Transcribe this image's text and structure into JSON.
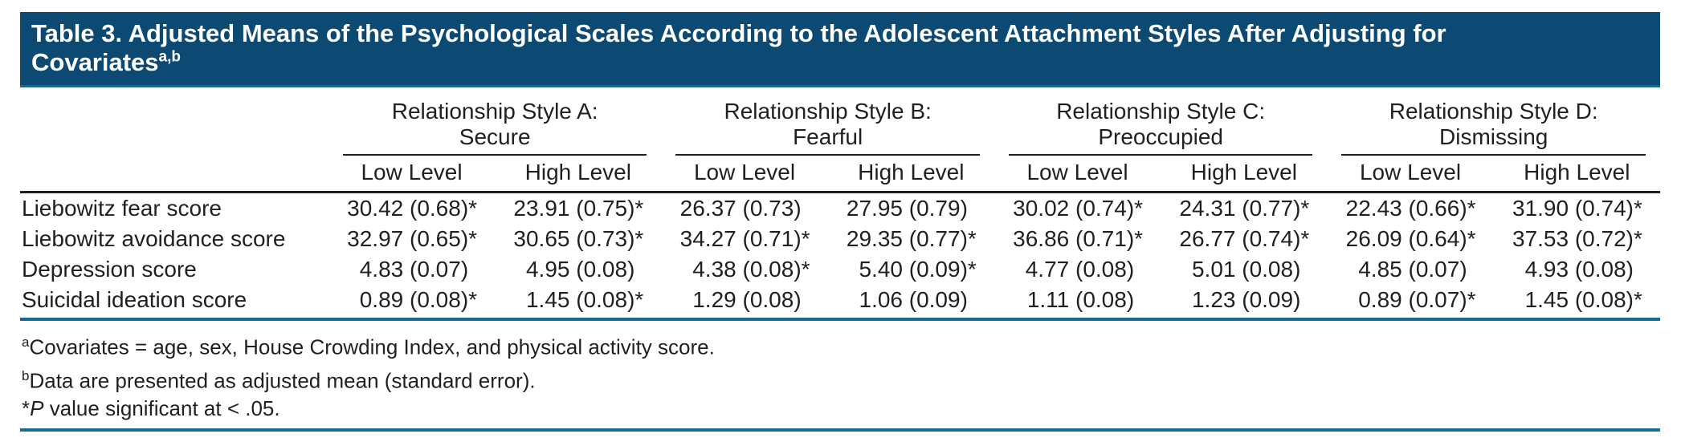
{
  "colors": {
    "title_bg": "#0d4a73",
    "rule_teal": "#186a8e",
    "rule_black": "#231f20",
    "text": "#231f20",
    "title_text": "#ffffff"
  },
  "title": {
    "line1": "Table 3. Adjusted Means of the Psychological Scales According to the Adolescent Attachment Styles After Adjusting for",
    "line2": "Covariates",
    "superscript": "a,b"
  },
  "table": {
    "groups": [
      {
        "line1": "Relationship Style A:",
        "line2": "Secure"
      },
      {
        "line1": "Relationship Style B:",
        "line2": "Fearful"
      },
      {
        "line1": "Relationship Style C:",
        "line2": "Preoccupied"
      },
      {
        "line1": "Relationship Style D:",
        "line2": "Dismissing"
      }
    ],
    "subheader": {
      "low": "Low Level",
      "high": "High Level"
    },
    "rows": [
      {
        "label": "Liebowitz fear score",
        "cells": [
          {
            "v": "30.42 (0.68)",
            "s": "*"
          },
          {
            "v": "23.91 (0.75)",
            "s": "*"
          },
          {
            "v": "26.37 (0.73)",
            "s": ""
          },
          {
            "v": "27.95 (0.79)",
            "s": ""
          },
          {
            "v": "30.02 (0.74)",
            "s": "*"
          },
          {
            "v": "24.31 (0.77)",
            "s": "*"
          },
          {
            "v": "22.43 (0.66)",
            "s": "*"
          },
          {
            "v": "31.90 (0.74)",
            "s": "*"
          }
        ]
      },
      {
        "label": "Liebowitz avoidance score",
        "cells": [
          {
            "v": "32.97 (0.65)",
            "s": "*"
          },
          {
            "v": "30.65 (0.73)",
            "s": "*"
          },
          {
            "v": "34.27 (0.71)",
            "s": "*"
          },
          {
            "v": "29.35 (0.77)",
            "s": "*"
          },
          {
            "v": "36.86 (0.71)",
            "s": "*"
          },
          {
            "v": "26.77 (0.74)",
            "s": "*"
          },
          {
            "v": "26.09 (0.64)",
            "s": "*"
          },
          {
            "v": "37.53 (0.72)",
            "s": "*"
          }
        ]
      },
      {
        "label": "Depression score",
        "cells": [
          {
            "v": "4.83 (0.07)",
            "s": ""
          },
          {
            "v": "4.95 (0.08)",
            "s": ""
          },
          {
            "v": "4.38 (0.08)",
            "s": "*"
          },
          {
            "v": "5.40 (0.09)",
            "s": "*"
          },
          {
            "v": "4.77 (0.08)",
            "s": ""
          },
          {
            "v": "5.01 (0.08)",
            "s": ""
          },
          {
            "v": "4.85 (0.07)",
            "s": ""
          },
          {
            "v": "4.93 (0.08)",
            "s": ""
          }
        ]
      },
      {
        "label": "Suicidal ideation score",
        "cells": [
          {
            "v": "0.89 (0.08)",
            "s": "*"
          },
          {
            "v": "1.45 (0.08)",
            "s": "*"
          },
          {
            "v": "1.29 (0.08)",
            "s": ""
          },
          {
            "v": "1.06 (0.09)",
            "s": ""
          },
          {
            "v": "1.11 (0.08)",
            "s": ""
          },
          {
            "v": "1.23 (0.09)",
            "s": ""
          },
          {
            "v": "0.89 (0.07)",
            "s": "*"
          },
          {
            "v": "1.45 (0.08)",
            "s": "*"
          }
        ]
      }
    ]
  },
  "footnotes": {
    "a": {
      "marker": "a",
      "text": "Covariates = age, sex, House Crowding Index, and physical activity score."
    },
    "b": {
      "marker": "b",
      "text": "Data are presented as adjusted mean (standard error)."
    },
    "sig": {
      "marker": "*",
      "italic": "P",
      "text": " value significant at < .05."
    }
  }
}
